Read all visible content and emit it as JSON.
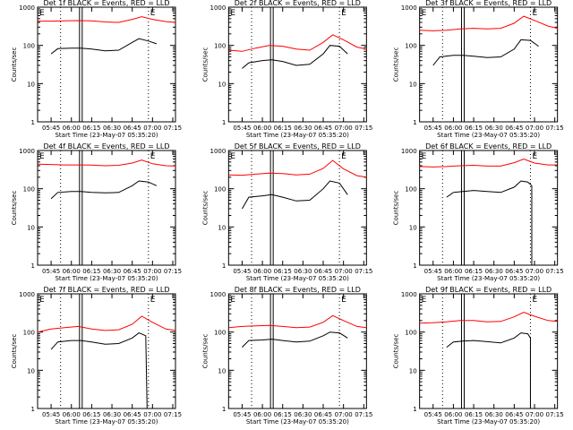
{
  "chart_data": [
    {
      "type": "line",
      "title": "Det 1f BLACK = Events, RED = LLD",
      "xlabel": "Start Time (23-May-07 05:35:20)",
      "ylabel": "Counts/sec",
      "x_ticks": [
        "05:45",
        "06:00",
        "06:15",
        "06:30",
        "06:45",
        "07:00",
        "07:15"
      ],
      "y_ticks": [
        "1",
        "10",
        "100",
        "1000"
      ],
      "y_scale": "log",
      "ylim": [
        1,
        1000
      ],
      "xlim": [
        "05:35",
        "07:17"
      ],
      "markers": [
        {
          "label": "E",
          "x": "05:35"
        },
        {
          "label": "E",
          "x": "06:57"
        }
      ],
      "vertical_lines": [
        {
          "x": "06:07",
          "style": "solid-double"
        },
        {
          "x": "05:52",
          "style": "dotted"
        },
        {
          "x": "06:57",
          "style": "dotted"
        }
      ],
      "series": [
        {
          "color": "#ff0000",
          "x": [
            "05:35",
            "05:45",
            "05:55",
            "06:05",
            "06:15",
            "06:25",
            "06:35",
            "06:45",
            "06:52",
            "07:00",
            "07:10",
            "07:17"
          ],
          "values": [
            430,
            430,
            440,
            445,
            440,
            410,
            400,
            480,
            560,
            480,
            420,
            400
          ]
        },
        {
          "color": "#000000",
          "x": [
            "05:45",
            "05:50",
            "06:00",
            "06:07",
            "06:15",
            "06:25",
            "06:35",
            "06:45",
            "06:50",
            "06:57",
            "07:03"
          ],
          "values": [
            60,
            82,
            85,
            85,
            80,
            72,
            75,
            120,
            150,
            130,
            110
          ]
        }
      ]
    },
    {
      "type": "line",
      "title": "Det 2f BLACK = Events, RED = LLD",
      "xlabel": "Start Time (23-May-07 05:35:20)",
      "ylabel": "Counts/sec",
      "x_ticks": [
        "05:45",
        "06:00",
        "06:15",
        "06:30",
        "06:45",
        "07:00",
        "07:15"
      ],
      "y_ticks": [
        "1",
        "10",
        "100",
        "1000"
      ],
      "y_scale": "log",
      "ylim": [
        1,
        1000
      ],
      "xlim": [
        "05:35",
        "07:17"
      ],
      "markers": [
        {
          "label": "E",
          "x": "05:35"
        },
        {
          "label": "E",
          "x": "06:57"
        }
      ],
      "vertical_lines": [
        {
          "x": "06:07",
          "style": "solid-double"
        },
        {
          "x": "05:52",
          "style": "dotted"
        },
        {
          "x": "06:57",
          "style": "dotted"
        }
      ],
      "series": [
        {
          "color": "#ff0000",
          "x": [
            "05:35",
            "05:45",
            "05:55",
            "06:05",
            "06:15",
            "06:25",
            "06:35",
            "06:45",
            "06:52",
            "07:00",
            "07:10",
            "07:17"
          ],
          "values": [
            75,
            70,
            85,
            100,
            95,
            80,
            75,
            120,
            190,
            140,
            90,
            80
          ]
        },
        {
          "color": "#000000",
          "x": [
            "05:45",
            "05:50",
            "06:00",
            "06:07",
            "06:15",
            "06:25",
            "06:35",
            "06:45",
            "06:50",
            "06:57",
            "07:03"
          ],
          "values": [
            25,
            35,
            40,
            42,
            38,
            30,
            32,
            60,
            100,
            95,
            60
          ]
        }
      ]
    },
    {
      "type": "line",
      "title": "Det 3f BLACK = Events, RED = LLD",
      "xlabel": "Start Time (23-May-07 05:35:20)",
      "ylabel": "Counts/sec",
      "x_ticks": [
        "05:45",
        "06:00",
        "06:15",
        "06:30",
        "06:45",
        "07:00",
        "07:15"
      ],
      "y_ticks": [
        "1",
        "10",
        "100",
        "1000"
      ],
      "y_scale": "log",
      "ylim": [
        1,
        1000
      ],
      "xlim": [
        "05:35",
        "07:17"
      ],
      "markers": [
        {
          "label": "E",
          "x": "05:35"
        },
        {
          "label": "E",
          "x": "06:57"
        }
      ],
      "vertical_lines": [
        {
          "x": "06:07",
          "style": "solid-double"
        },
        {
          "x": "05:52",
          "style": "dotted"
        },
        {
          "x": "06:57",
          "style": "dotted"
        }
      ],
      "series": [
        {
          "color": "#ff0000",
          "x": [
            "05:35",
            "05:45",
            "05:55",
            "06:05",
            "06:15",
            "06:25",
            "06:35",
            "06:45",
            "06:52",
            "07:00",
            "07:10",
            "07:17"
          ],
          "values": [
            250,
            240,
            250,
            270,
            280,
            270,
            280,
            380,
            580,
            450,
            320,
            280
          ]
        },
        {
          "color": "#000000",
          "x": [
            "05:45",
            "05:50",
            "06:00",
            "06:07",
            "06:15",
            "06:25",
            "06:35",
            "06:45",
            "06:50",
            "06:57",
            "07:03"
          ],
          "values": [
            30,
            50,
            55,
            55,
            52,
            48,
            50,
            80,
            140,
            135,
            95
          ]
        }
      ]
    },
    {
      "type": "line",
      "title": "Det 4f BLACK = Events, RED = LLD",
      "xlabel": "Start Time (23-May-07 05:35:20)",
      "ylabel": "Counts/sec",
      "x_ticks": [
        "05:45",
        "06:00",
        "06:15",
        "06:30",
        "06:45",
        "07:00",
        "07:15"
      ],
      "y_ticks": [
        "1",
        "10",
        "100",
        "1000"
      ],
      "y_scale": "log",
      "ylim": [
        1,
        1000
      ],
      "xlim": [
        "05:35",
        "07:17"
      ],
      "markers": [
        {
          "label": "E",
          "x": "05:35"
        },
        {
          "label": "E",
          "x": "06:57"
        }
      ],
      "vertical_lines": [
        {
          "x": "06:07",
          "style": "solid-double"
        },
        {
          "x": "05:52",
          "style": "dotted"
        },
        {
          "x": "06:57",
          "style": "dotted"
        }
      ],
      "series": [
        {
          "color": "#ff0000",
          "x": [
            "05:35",
            "05:45",
            "05:55",
            "06:05",
            "06:15",
            "06:25",
            "06:35",
            "06:45",
            "06:52",
            "07:00",
            "07:10",
            "07:17"
          ],
          "values": [
            440,
            430,
            420,
            420,
            415,
            400,
            410,
            470,
            560,
            450,
            400,
            390
          ]
        },
        {
          "color": "#000000",
          "x": [
            "05:45",
            "05:50",
            "06:00",
            "06:07",
            "06:15",
            "06:25",
            "06:35",
            "06:45",
            "06:50",
            "06:57",
            "07:03"
          ],
          "values": [
            55,
            80,
            85,
            85,
            80,
            78,
            80,
            120,
            160,
            150,
            120
          ]
        }
      ]
    },
    {
      "type": "line",
      "title": "Det 5f BLACK = Events, RED = LLD",
      "xlabel": "Start Time (23-May-07 05:35:20)",
      "ylabel": "Counts/sec",
      "x_ticks": [
        "05:45",
        "06:00",
        "06:15",
        "06:30",
        "06:45",
        "07:00",
        "07:15"
      ],
      "y_ticks": [
        "1",
        "10",
        "100",
        "1000"
      ],
      "y_scale": "log",
      "ylim": [
        1,
        1000
      ],
      "xlim": [
        "05:35",
        "07:17"
      ],
      "markers": [
        {
          "label": "E",
          "x": "05:35"
        },
        {
          "label": "E",
          "x": "06:57"
        }
      ],
      "vertical_lines": [
        {
          "x": "06:07",
          "style": "solid-double"
        },
        {
          "x": "05:52",
          "style": "dotted"
        },
        {
          "x": "06:57",
          "style": "dotted"
        }
      ],
      "series": [
        {
          "color": "#ff0000",
          "x": [
            "05:35",
            "05:45",
            "05:55",
            "06:05",
            "06:15",
            "06:25",
            "06:35",
            "06:45",
            "06:52",
            "07:00",
            "07:10",
            "07:17"
          ],
          "values": [
            230,
            225,
            240,
            255,
            250,
            230,
            240,
            340,
            550,
            330,
            220,
            200
          ]
        },
        {
          "color": "#000000",
          "x": [
            "05:45",
            "05:50",
            "06:00",
            "06:07",
            "06:15",
            "06:25",
            "06:35",
            "06:45",
            "06:50",
            "06:57",
            "07:03"
          ],
          "values": [
            30,
            60,
            65,
            70,
            60,
            48,
            50,
            100,
            160,
            140,
            70
          ]
        }
      ]
    },
    {
      "type": "line",
      "title": "Det 6f BLACK = Events, RED = LLD",
      "xlabel": "Start Time (23-May-07 05:35:20)",
      "ylabel": "Counts/sec",
      "x_ticks": [
        "05:45",
        "06:00",
        "06:15",
        "06:30",
        "06:45",
        "07:00",
        "07:15"
      ],
      "y_ticks": [
        "1",
        "10",
        "100",
        "1000"
      ],
      "y_scale": "log",
      "ylim": [
        1,
        1000
      ],
      "xlim": [
        "05:35",
        "07:17"
      ],
      "markers": [
        {
          "label": "E",
          "x": "05:35"
        },
        {
          "label": "E",
          "x": "06:57"
        }
      ],
      "vertical_lines": [
        {
          "x": "06:07",
          "style": "solid-double"
        },
        {
          "x": "05:52",
          "style": "dotted"
        },
        {
          "x": "06:57",
          "style": "dotted"
        }
      ],
      "series": [
        {
          "color": "#ff0000",
          "x": [
            "05:35",
            "05:45",
            "05:55",
            "06:05",
            "06:15",
            "06:25",
            "06:35",
            "06:45",
            "06:52",
            "07:00",
            "07:10",
            "07:17"
          ],
          "values": [
            380,
            370,
            380,
            400,
            410,
            390,
            390,
            480,
            600,
            470,
            420,
            420
          ]
        },
        {
          "color": "#000000",
          "x": [
            "05:55",
            "06:00",
            "06:07",
            "06:15",
            "06:25",
            "06:35",
            "06:45",
            "06:50",
            "06:55",
            "06:58",
            "06:58"
          ],
          "values": [
            60,
            80,
            85,
            90,
            85,
            80,
            110,
            160,
            150,
            120,
            1
          ]
        }
      ]
    },
    {
      "type": "line",
      "title": "Det 7f BLACK = Events, RED = LLD",
      "xlabel": "Start Time (23-May-07 05:35:20)",
      "ylabel": "Counts/sec",
      "x_ticks": [
        "05:45",
        "06:00",
        "06:15",
        "06:30",
        "06:45",
        "07:00",
        "07:15"
      ],
      "y_ticks": [
        "1",
        "10",
        "100",
        "1000"
      ],
      "y_scale": "log",
      "ylim": [
        1,
        1000
      ],
      "xlim": [
        "05:35",
        "07:17"
      ],
      "markers": [
        {
          "label": "E",
          "x": "05:35"
        },
        {
          "label": "E",
          "x": "06:57"
        }
      ],
      "vertical_lines": [
        {
          "x": "06:07",
          "style": "solid-double"
        },
        {
          "x": "05:52",
          "style": "dotted"
        },
        {
          "x": "06:57",
          "style": "dotted"
        }
      ],
      "series": [
        {
          "color": "#ff0000",
          "x": [
            "05:35",
            "05:45",
            "05:55",
            "06:05",
            "06:15",
            "06:25",
            "06:35",
            "06:45",
            "06:52",
            "07:00",
            "07:10",
            "07:17"
          ],
          "values": [
            100,
            120,
            130,
            140,
            120,
            110,
            115,
            160,
            260,
            180,
            120,
            110
          ]
        },
        {
          "color": "#000000",
          "x": [
            "05:45",
            "05:50",
            "06:00",
            "06:07",
            "06:15",
            "06:25",
            "06:35",
            "06:45",
            "06:50",
            "06:55",
            "06:56"
          ],
          "values": [
            35,
            55,
            60,
            60,
            55,
            48,
            50,
            70,
            95,
            80,
            1
          ]
        }
      ]
    },
    {
      "type": "line",
      "title": "Det 8f BLACK = Events, RED = LLD",
      "xlabel": "Start Time (23-May-07 05:35:20)",
      "ylabel": "Counts/sec",
      "x_ticks": [
        "05:45",
        "06:00",
        "06:15",
        "06:30",
        "06:45",
        "07:00",
        "07:15"
      ],
      "y_ticks": [
        "1",
        "10",
        "100",
        "1000"
      ],
      "y_scale": "log",
      "ylim": [
        1,
        1000
      ],
      "xlim": [
        "05:35",
        "07:17"
      ],
      "markers": [
        {
          "label": "E",
          "x": "05:35"
        },
        {
          "label": "E",
          "x": "06:57"
        }
      ],
      "vertical_lines": [
        {
          "x": "06:07",
          "style": "solid-double"
        },
        {
          "x": "05:52",
          "style": "dotted"
        },
        {
          "x": "06:57",
          "style": "dotted"
        }
      ],
      "series": [
        {
          "color": "#ff0000",
          "x": [
            "05:35",
            "05:45",
            "05:55",
            "06:05",
            "06:15",
            "06:25",
            "06:35",
            "06:45",
            "06:52",
            "07:00",
            "07:10",
            "07:17"
          ],
          "values": [
            130,
            140,
            145,
            150,
            140,
            130,
            135,
            180,
            270,
            200,
            140,
            130
          ]
        },
        {
          "color": "#000000",
          "x": [
            "05:45",
            "05:50",
            "06:00",
            "06:07",
            "06:15",
            "06:25",
            "06:35",
            "06:45",
            "06:50",
            "06:57",
            "07:03"
          ],
          "values": [
            40,
            60,
            62,
            65,
            60,
            55,
            58,
            80,
            100,
            95,
            70
          ]
        }
      ]
    },
    {
      "type": "line",
      "title": "Det 9f BLACK = Events, RED = LLD",
      "xlabel": "Start Time (23-May-07 05:35:20)",
      "ylabel": "Counts/sec",
      "x_ticks": [
        "05:45",
        "06:00",
        "06:15",
        "06:30",
        "06:45",
        "07:00",
        "07:15"
      ],
      "y_ticks": [
        "1",
        "10",
        "100",
        "1000"
      ],
      "y_scale": "log",
      "ylim": [
        1,
        1000
      ],
      "xlim": [
        "05:35",
        "07:17"
      ],
      "markers": [
        {
          "label": "E",
          "x": "05:35"
        },
        {
          "label": "E",
          "x": "06:57"
        }
      ],
      "vertical_lines": [
        {
          "x": "06:07",
          "style": "solid-double"
        },
        {
          "x": "05:52",
          "style": "dotted"
        },
        {
          "x": "06:57",
          "style": "dotted"
        }
      ],
      "series": [
        {
          "color": "#ff0000",
          "x": [
            "05:35",
            "05:45",
            "05:55",
            "06:05",
            "06:15",
            "06:25",
            "06:35",
            "06:45",
            "06:52",
            "07:00",
            "07:10",
            "07:17"
          ],
          "values": [
            170,
            175,
            185,
            200,
            200,
            185,
            190,
            250,
            330,
            260,
            200,
            190
          ]
        },
        {
          "color": "#000000",
          "x": [
            "05:55",
            "06:00",
            "06:07",
            "06:15",
            "06:25",
            "06:35",
            "06:45",
            "06:50",
            "06:55",
            "06:57",
            "06:57"
          ],
          "values": [
            40,
            55,
            58,
            60,
            56,
            52,
            70,
            95,
            90,
            70,
            1
          ]
        }
      ]
    }
  ]
}
